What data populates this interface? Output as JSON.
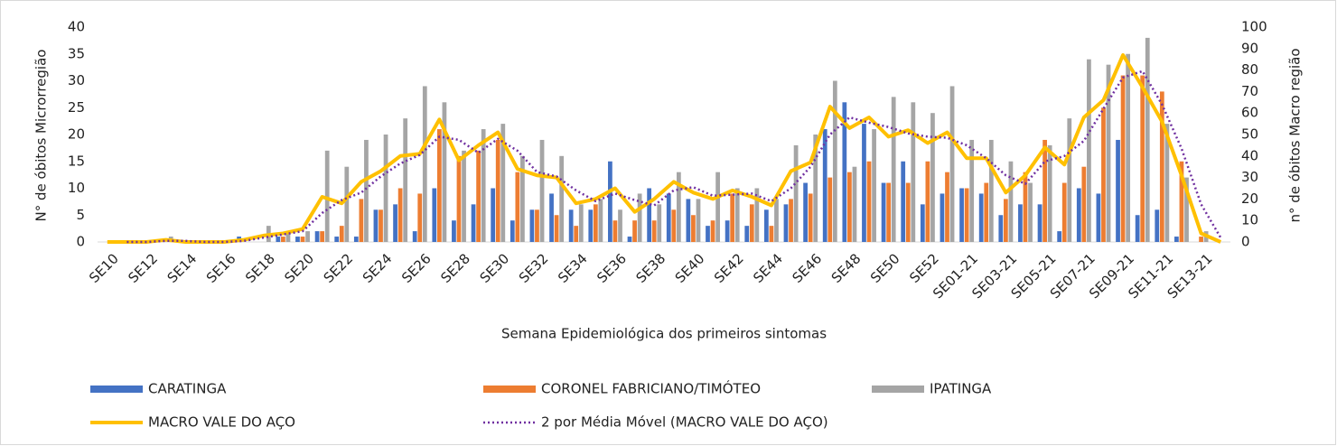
{
  "chart_data": {
    "type": "combo",
    "categories": [
      "SE10",
      null,
      "SE12",
      null,
      "SE14",
      null,
      "SE16",
      null,
      "SE18",
      null,
      "SE20",
      null,
      "SE22",
      null,
      "SE24",
      null,
      "SE26",
      null,
      "SE28",
      null,
      "SE30",
      null,
      "SE32",
      null,
      "SE34",
      null,
      "SE36",
      null,
      "SE38",
      null,
      "SE40",
      null,
      "SE42",
      null,
      "SE44",
      null,
      "SE46",
      null,
      "SE48",
      null,
      "SE50",
      null,
      "SE52",
      null,
      "SE01-21",
      null,
      "SE03-21",
      null,
      "SE05-21",
      null,
      "SE07-21",
      null,
      "SE09-21",
      null,
      "SE11-21",
      null,
      "SE13-21",
      null
    ],
    "x_label": "Semana Epidemiológica dos primeiros sintomas",
    "y_label": "N° de óbitos Microrregião",
    "y2_label": "n° de óbitos Macro região",
    "ylim": [
      0,
      40
    ],
    "yticks": [
      0,
      5,
      10,
      15,
      20,
      25,
      30,
      35,
      40
    ],
    "y2lim": [
      0,
      100
    ],
    "y2ticks": [
      0,
      10,
      20,
      30,
      40,
      50,
      60,
      70,
      80,
      90,
      100
    ],
    "grid": false,
    "series": [
      {
        "name": "CARATINGA",
        "type": "bar",
        "color": "#4472c4",
        "values": [
          0,
          0,
          0,
          0,
          0,
          0,
          0,
          1,
          0,
          1,
          1,
          2,
          1,
          1,
          6,
          7,
          2,
          10,
          4,
          7,
          10,
          4,
          6,
          9,
          6,
          6,
          15,
          1,
          10,
          9,
          8,
          3,
          4,
          3,
          6,
          7,
          11,
          21,
          26,
          22,
          11,
          15,
          7,
          9,
          10,
          9,
          5,
          7,
          7,
          2,
          10,
          9,
          19,
          5,
          6,
          1,
          0,
          0
        ]
      },
      {
        "name": "CORONEL FABRICIANO/TIMÓTEO",
        "type": "bar",
        "color": "#ed7d31",
        "values": [
          0,
          0,
          0,
          0,
          0,
          0,
          0,
          0,
          0,
          1,
          1,
          2,
          3,
          8,
          6,
          10,
          9,
          21,
          16,
          17,
          19,
          13,
          6,
          5,
          3,
          7,
          4,
          4,
          4,
          6,
          5,
          4,
          9,
          7,
          3,
          8,
          9,
          12,
          13,
          15,
          11,
          11,
          15,
          13,
          10,
          11,
          8,
          13,
          19,
          11,
          14,
          25,
          31,
          31,
          28,
          15,
          1,
          0
        ]
      },
      {
        "name": "IPATINGA",
        "type": "bar",
        "color": "#a5a5a5",
        "values": [
          0,
          0,
          0,
          1,
          0,
          0,
          0,
          0,
          3,
          2,
          2,
          17,
          14,
          19,
          20,
          23,
          29,
          26,
          17,
          21,
          22,
          16,
          19,
          16,
          7,
          8,
          6,
          9,
          7,
          13,
          8,
          13,
          10,
          10,
          8,
          18,
          20,
          30,
          14,
          21,
          27,
          26,
          24,
          29,
          19,
          19,
          15,
          11,
          18,
          23,
          34,
          33,
          35,
          38,
          22,
          12,
          2,
          0
        ]
      },
      {
        "name": "MACRO VALE DO AÇO",
        "type": "line",
        "axis": "y2",
        "color": "#ffc000",
        "line_style": "solid",
        "values": [
          0,
          0,
          0,
          1,
          0,
          0,
          0,
          1,
          3,
          4,
          6,
          21,
          18,
          28,
          33,
          40,
          41,
          57,
          38,
          45,
          51,
          34,
          31,
          30,
          18,
          20,
          25,
          14,
          20,
          28,
          23,
          20,
          24,
          21,
          17,
          33,
          37,
          63,
          53,
          58,
          49,
          52,
          46,
          51,
          39,
          39,
          23,
          31,
          44,
          36,
          58,
          66,
          87,
          72,
          56,
          31,
          4,
          0
        ]
      },
      {
        "name": "2 por Média Móvel (MACRO VALE DO AÇO)",
        "type": "line",
        "axis": "y2",
        "color": "#7030a0",
        "line_style": "dotted",
        "values": [
          null,
          0,
          0,
          0.5,
          0.5,
          0,
          0,
          0.5,
          2,
          3.5,
          5,
          13.5,
          19.5,
          23,
          30.5,
          36.5,
          40.5,
          49,
          47.5,
          41.5,
          48,
          42.5,
          32.5,
          30.5,
          24,
          19,
          22.5,
          19.5,
          17,
          24,
          25.5,
          21.5,
          22,
          22.5,
          19,
          25,
          35,
          50,
          58,
          55.5,
          53.5,
          50.5,
          49,
          48.5,
          45,
          39,
          31,
          27,
          37.5,
          40,
          47,
          62,
          76.5,
          79.5,
          64,
          43.5,
          17.5,
          2
        ]
      }
    ]
  }
}
